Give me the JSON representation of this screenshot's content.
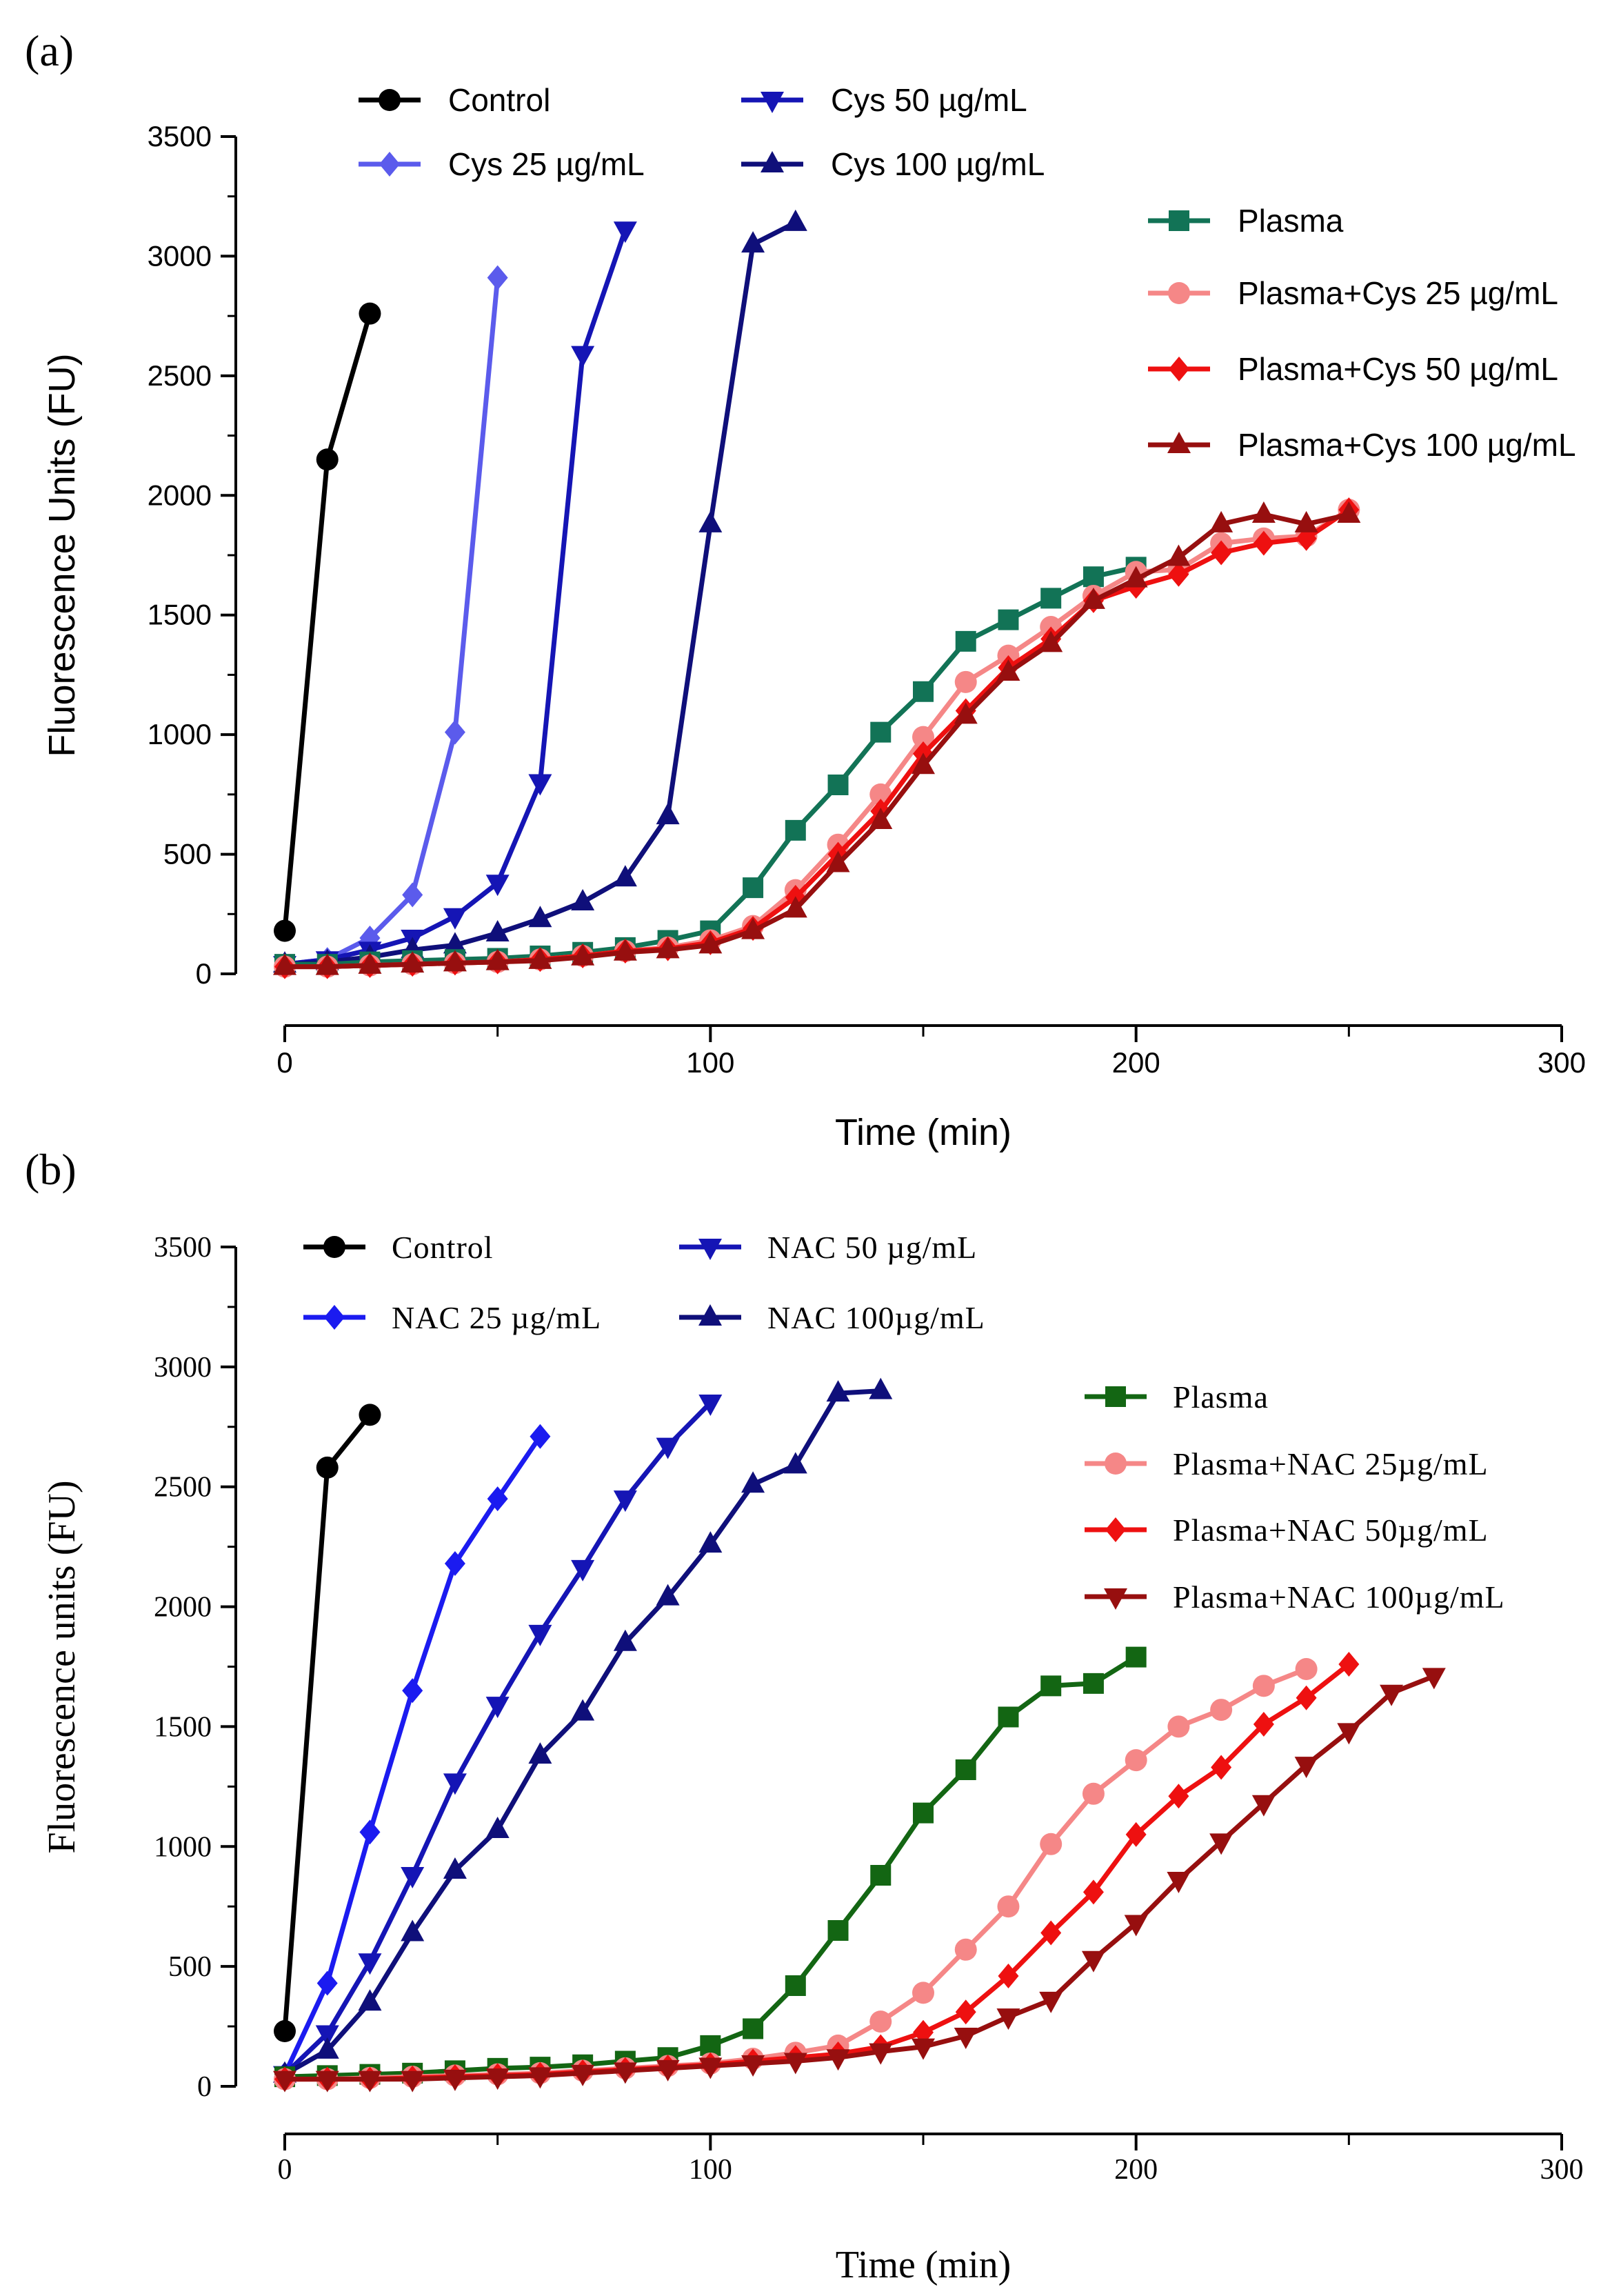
{
  "chart_data": [
    {
      "panel_label": "(a)",
      "type": "line",
      "xlabel": "Time (min)",
      "ylabel": "Fluorescence Units (FU)",
      "xlim": [
        0,
        300
      ],
      "ylim": [
        0,
        3500
      ],
      "xticks": [
        0,
        100,
        200,
        300
      ],
      "yticks": [
        0,
        500,
        1000,
        1500,
        2000,
        2500,
        3000,
        3500
      ],
      "series": [
        {
          "name": "Control",
          "color": "#000000",
          "marker": "circle",
          "x": [
            0,
            10,
            20
          ],
          "y": [
            180,
            2150,
            2760
          ]
        },
        {
          "name": "Cys 25 µg/mL",
          "color": "#5b5bec",
          "marker": "diamond",
          "x": [
            0,
            10,
            20,
            30,
            40,
            50
          ],
          "y": [
            40,
            60,
            150,
            330,
            1010,
            2910
          ]
        },
        {
          "name": "Cys 50 µg/mL",
          "color": "#1515b5",
          "marker": "triangle-down",
          "x": [
            0,
            10,
            20,
            30,
            40,
            50,
            60,
            70,
            80
          ],
          "y": [
            40,
            60,
            100,
            150,
            240,
            380,
            800,
            2590,
            3110
          ]
        },
        {
          "name": "Cys 100 µg/mL",
          "color": "#0f0f7a",
          "marker": "triangle-up",
          "x": [
            0,
            10,
            20,
            30,
            40,
            50,
            60,
            70,
            80,
            90,
            100,
            110,
            120
          ],
          "y": [
            40,
            50,
            70,
            100,
            120,
            170,
            230,
            300,
            400,
            660,
            1880,
            3050,
            3140
          ]
        },
        {
          "name": "Plasma",
          "color": "#127356",
          "marker": "square",
          "x": [
            0,
            10,
            20,
            30,
            40,
            50,
            60,
            70,
            80,
            90,
            100,
            110,
            120,
            130,
            140,
            150,
            160,
            170,
            180,
            190,
            200
          ],
          "y": [
            40,
            40,
            50,
            55,
            60,
            65,
            75,
            90,
            110,
            140,
            180,
            360,
            600,
            790,
            1010,
            1180,
            1390,
            1480,
            1570,
            1660,
            1700
          ]
        },
        {
          "name": "Plasma+Cys 25 µg/mL",
          "color": "#f58787",
          "marker": "circle",
          "x": [
            0,
            10,
            20,
            30,
            40,
            50,
            60,
            70,
            80,
            90,
            100,
            110,
            120,
            130,
            140,
            150,
            160,
            170,
            180,
            190,
            200,
            210,
            220,
            230,
            240,
            250
          ],
          "y": [
            30,
            30,
            35,
            40,
            45,
            50,
            60,
            75,
            95,
            110,
            140,
            200,
            350,
            540,
            750,
            990,
            1220,
            1330,
            1450,
            1580,
            1680,
            1690,
            1800,
            1820,
            1830,
            1940
          ]
        },
        {
          "name": "Plasma+Cys 50 µg/mL",
          "color": "#ee1010",
          "marker": "diamond",
          "x": [
            0,
            10,
            20,
            30,
            40,
            50,
            60,
            70,
            80,
            90,
            100,
            110,
            120,
            130,
            140,
            150,
            160,
            170,
            180,
            190,
            200,
            210,
            220,
            230,
            240,
            250
          ],
          "y": [
            30,
            30,
            35,
            40,
            45,
            50,
            60,
            75,
            95,
            105,
            130,
            190,
            320,
            500,
            680,
            920,
            1100,
            1280,
            1400,
            1560,
            1620,
            1670,
            1760,
            1800,
            1820,
            1940
          ]
        },
        {
          "name": "Plasma+Cys 100 µg/mL",
          "color": "#970f0f",
          "marker": "triangle-up",
          "x": [
            0,
            10,
            20,
            30,
            40,
            50,
            60,
            70,
            80,
            90,
            100,
            110,
            120,
            130,
            140,
            150,
            160,
            170,
            180,
            190,
            200,
            210,
            220,
            230,
            240,
            250
          ],
          "y": [
            30,
            30,
            35,
            40,
            45,
            50,
            55,
            70,
            90,
            100,
            120,
            180,
            270,
            460,
            640,
            870,
            1080,
            1260,
            1380,
            1560,
            1650,
            1740,
            1880,
            1920,
            1880,
            1920
          ]
        }
      ]
    },
    {
      "panel_label": "(b)",
      "type": "line",
      "xlabel": "Time (min)",
      "ylabel": "Fluorescence units (FU)",
      "xlim": [
        0,
        300
      ],
      "ylim": [
        0,
        3500
      ],
      "xticks": [
        0,
        100,
        200,
        300
      ],
      "yticks": [
        0,
        500,
        1000,
        1500,
        2000,
        2500,
        3000,
        3500
      ],
      "series": [
        {
          "name": "Control",
          "color": "#000000",
          "marker": "circle",
          "x": [
            0,
            10,
            20
          ],
          "y": [
            230,
            2580,
            2800
          ]
        },
        {
          "name": "NAC 25 µg/mL",
          "color": "#1b1bf0",
          "marker": "diamond",
          "x": [
            0,
            10,
            20,
            30,
            40,
            50,
            60
          ],
          "y": [
            50,
            430,
            1060,
            1650,
            2180,
            2450,
            2710
          ]
        },
        {
          "name": "NAC 50 µg/mL",
          "color": "#1515b5",
          "marker": "triangle-down",
          "x": [
            0,
            10,
            20,
            30,
            40,
            50,
            60,
            70,
            80,
            90,
            100
          ],
          "y": [
            50,
            220,
            520,
            880,
            1270,
            1590,
            1890,
            2160,
            2450,
            2670,
            2850
          ]
        },
        {
          "name": "NAC 100µg/mL",
          "color": "#0f0f7a",
          "marker": "triangle-up",
          "x": [
            0,
            10,
            20,
            30,
            40,
            50,
            60,
            70,
            80,
            90,
            100,
            110,
            120,
            130,
            140
          ],
          "y": [
            50,
            150,
            350,
            640,
            900,
            1070,
            1380,
            1560,
            1850,
            2040,
            2260,
            2510,
            2590,
            2890,
            2900
          ]
        },
        {
          "name": "Plasma",
          "color": "#136613",
          "marker": "square",
          "x": [
            0,
            10,
            20,
            30,
            40,
            50,
            60,
            70,
            80,
            90,
            100,
            110,
            120,
            130,
            140,
            150,
            160,
            170,
            180,
            190,
            200
          ],
          "y": [
            40,
            45,
            50,
            55,
            65,
            75,
            80,
            90,
            105,
            120,
            170,
            240,
            420,
            650,
            880,
            1140,
            1320,
            1540,
            1670,
            1680,
            1790
          ]
        },
        {
          "name": "Plasma+NAC 25µg/mL",
          "color": "#f58787",
          "marker": "circle",
          "x": [
            0,
            10,
            20,
            30,
            40,
            50,
            60,
            70,
            80,
            90,
            100,
            110,
            120,
            130,
            140,
            150,
            160,
            170,
            180,
            190,
            200,
            210,
            220,
            230,
            240
          ],
          "y": [
            30,
            30,
            35,
            40,
            45,
            50,
            55,
            65,
            75,
            85,
            95,
            115,
            140,
            170,
            270,
            390,
            570,
            750,
            1010,
            1220,
            1360,
            1500,
            1570,
            1670,
            1740
          ]
        },
        {
          "name": "Plasma+NAC 50µg/mL",
          "color": "#ee1010",
          "marker": "diamond",
          "x": [
            0,
            10,
            20,
            30,
            40,
            50,
            60,
            70,
            80,
            90,
            100,
            110,
            120,
            130,
            140,
            150,
            160,
            170,
            180,
            190,
            200,
            210,
            220,
            230,
            240,
            250
          ],
          "y": [
            30,
            30,
            30,
            35,
            40,
            45,
            50,
            60,
            70,
            80,
            90,
            105,
            120,
            135,
            165,
            225,
            310,
            460,
            640,
            810,
            1050,
            1210,
            1330,
            1510,
            1620,
            1760
          ]
        },
        {
          "name": "Plasma+NAC 100µg/mL",
          "color": "#970f0f",
          "marker": "triangle-down",
          "x": [
            0,
            10,
            20,
            30,
            40,
            50,
            60,
            70,
            80,
            90,
            100,
            110,
            120,
            130,
            140,
            150,
            160,
            170,
            180,
            190,
            200,
            210,
            220,
            230,
            240,
            250,
            260,
            270
          ],
          "y": [
            30,
            30,
            30,
            30,
            35,
            40,
            45,
            55,
            65,
            75,
            85,
            95,
            105,
            120,
            145,
            165,
            210,
            290,
            360,
            530,
            680,
            860,
            1020,
            1180,
            1340,
            1480,
            1640,
            1710
          ]
        }
      ]
    }
  ]
}
